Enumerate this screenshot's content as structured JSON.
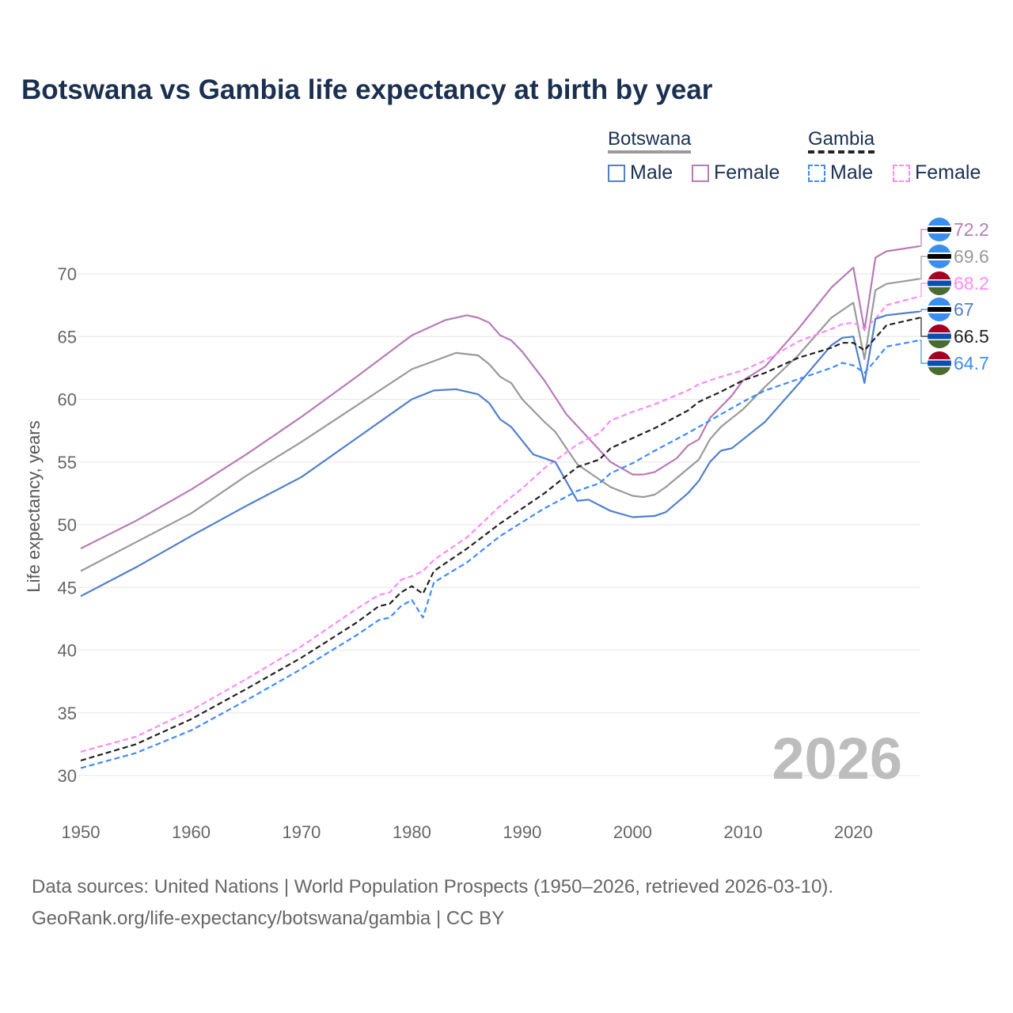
{
  "title": "Botswana vs Gambia life expectancy at birth by year",
  "legend": {
    "groups": [
      {
        "name": "Botswana",
        "items": [
          "Male",
          "Female"
        ]
      },
      {
        "name": "Gambia",
        "items": [
          "Male",
          "Female"
        ]
      }
    ]
  },
  "year_watermark": "2026",
  "footer": {
    "line1": "Data sources: United Nations | World Population Prospects (1950–2026, retrieved 2026-03-10).",
    "line2": "GeoRank.org/life-expectancy/botswana/gambia | CC BY"
  },
  "chart_data": {
    "type": "line",
    "title": "Botswana vs Gambia life expectancy at birth by year",
    "xlabel": "",
    "ylabel": "Life expectancy, years",
    "xlim": [
      1950,
      2026
    ],
    "ylim": [
      30,
      72.5
    ],
    "xticks": [
      "1950",
      "1960",
      "1970",
      "1980",
      "1990",
      "2000",
      "2010",
      "2020"
    ],
    "yticks": [
      "30",
      "35",
      "40",
      "45",
      "50",
      "55",
      "60",
      "65",
      "70"
    ],
    "grid": true,
    "legend_position": "top-right",
    "series": [
      {
        "name": "Botswana Female",
        "country": "Botswana",
        "color": "#b87ab8",
        "dashed": false,
        "end_label": "72.2",
        "x": [
          1950,
          1955,
          1960,
          1965,
          1970,
          1975,
          1980,
          1983,
          1985,
          1986,
          1987,
          1988,
          1989,
          1990,
          1992,
          1994,
          1996,
          1998,
          2000,
          2001,
          2002,
          2004,
          2005,
          2006,
          2007,
          2009,
          2010,
          2012,
          2015,
          2018,
          2020,
          2021,
          2022,
          2023,
          2026
        ],
        "y": [
          48.1,
          50.3,
          52.8,
          55.6,
          58.6,
          61.8,
          65.1,
          66.3,
          66.7,
          66.5,
          66.1,
          65.1,
          64.7,
          63.8,
          61.5,
          58.8,
          56.9,
          55.0,
          54.0,
          54.0,
          54.2,
          55.3,
          56.3,
          56.8,
          58.5,
          60.3,
          61.5,
          62.6,
          65.6,
          68.9,
          70.5,
          65.5,
          71.3,
          71.8,
          72.2
        ]
      },
      {
        "name": "Botswana",
        "country": "Botswana",
        "color": "#9a9a9a",
        "dashed": false,
        "end_label": "69.6",
        "x": [
          1950,
          1955,
          1960,
          1965,
          1970,
          1975,
          1980,
          1984,
          1986,
          1987,
          1988,
          1989,
          1990,
          1992,
          1993,
          1995,
          1998,
          2000,
          2001,
          2002,
          2003,
          2006,
          2007,
          2008,
          2010,
          2012,
          2015,
          2018,
          2020,
          2021,
          2022,
          2023,
          2026
        ],
        "y": [
          46.3,
          48.6,
          50.9,
          53.9,
          56.6,
          59.5,
          62.4,
          63.7,
          63.5,
          62.8,
          61.8,
          61.3,
          60.0,
          58.2,
          57.4,
          54.8,
          53.0,
          52.3,
          52.2,
          52.4,
          53.0,
          55.2,
          56.8,
          57.8,
          59.2,
          61.0,
          63.5,
          66.5,
          67.7,
          63.2,
          68.7,
          69.2,
          69.6
        ]
      },
      {
        "name": "Gambia Female",
        "country": "Gambia",
        "color": "#ff88ff",
        "dashed": true,
        "end_label": "68.2",
        "x": [
          1950,
          1955,
          1960,
          1965,
          1970,
          1975,
          1977,
          1978,
          1979,
          1980,
          1981,
          1982,
          1985,
          1988,
          1990,
          1992,
          1995,
          1997,
          1998,
          2000,
          2002,
          2005,
          2006,
          2008,
          2010,
          2012,
          2015,
          2018,
          2019,
          2020,
          2021,
          2022,
          2023,
          2026
        ],
        "y": [
          31.9,
          33.1,
          35.2,
          37.7,
          40.3,
          43.3,
          44.4,
          44.6,
          45.6,
          45.9,
          46.3,
          47.2,
          49.0,
          51.5,
          52.9,
          54.5,
          56.4,
          57.3,
          58.3,
          59.0,
          59.6,
          60.7,
          61.2,
          61.8,
          62.3,
          63.1,
          64.6,
          65.6,
          66.0,
          66.1,
          65.6,
          66.4,
          67.5,
          68.2
        ]
      },
      {
        "name": "Botswana Male",
        "country": "Botswana",
        "color": "#4f7fcf",
        "dashed": false,
        "end_label": "67",
        "x": [
          1950,
          1955,
          1960,
          1965,
          1970,
          1975,
          1980,
          1982,
          1984,
          1986,
          1987,
          1988,
          1989,
          1991,
          1993,
          1995,
          1996,
          1998,
          2000,
          2002,
          2003,
          2005,
          2006,
          2007,
          2008,
          2009,
          2012,
          2015,
          2018,
          2019,
          2020,
          2021,
          2022,
          2023,
          2026
        ],
        "y": [
          44.3,
          46.6,
          49.1,
          51.5,
          53.8,
          56.9,
          60.0,
          60.7,
          60.8,
          60.4,
          59.7,
          58.4,
          57.8,
          55.6,
          55.0,
          51.9,
          52.0,
          51.1,
          50.6,
          50.7,
          51.0,
          52.5,
          53.5,
          55.0,
          55.9,
          56.1,
          58.2,
          61.2,
          64.3,
          64.9,
          65.0,
          61.3,
          66.4,
          66.7,
          67.0
        ]
      },
      {
        "name": "Gambia",
        "country": "Gambia",
        "color": "#222222",
        "dashed": true,
        "end_label": "66.5",
        "x": [
          1950,
          1955,
          1960,
          1965,
          1970,
          1975,
          1977,
          1978,
          1979,
          1980,
          1981,
          1982,
          1985,
          1988,
          1990,
          1992,
          1995,
          1997,
          1998,
          2000,
          2002,
          2005,
          2006,
          2008,
          2010,
          2012,
          2015,
          2018,
          2019,
          2020,
          2021,
          2022,
          2023,
          2026
        ],
        "y": [
          31.2,
          32.5,
          34.5,
          36.9,
          39.4,
          42.2,
          43.5,
          43.7,
          44.6,
          45.1,
          44.5,
          46.3,
          48.1,
          50.1,
          51.3,
          52.5,
          54.6,
          55.2,
          56.1,
          56.9,
          57.7,
          59.1,
          59.8,
          60.6,
          61.5,
          62.1,
          63.3,
          64.1,
          64.5,
          64.5,
          63.9,
          64.9,
          65.9,
          66.5
        ]
      },
      {
        "name": "Gambia Male",
        "country": "Gambia",
        "color": "#3d8bff",
        "dashed": true,
        "end_label": "64.7",
        "x": [
          1950,
          1955,
          1960,
          1965,
          1970,
          1975,
          1977,
          1978,
          1979,
          1980,
          1981,
          1982,
          1985,
          1988,
          1990,
          1992,
          1995,
          1997,
          1998,
          2000,
          2002,
          2005,
          2008,
          2010,
          2012,
          2015,
          2018,
          2019,
          2020,
          2021,
          2022,
          2023,
          2026
        ],
        "y": [
          30.6,
          31.8,
          33.6,
          36.0,
          38.5,
          41.2,
          42.4,
          42.6,
          43.5,
          44.0,
          42.6,
          45.4,
          47.0,
          49.1,
          50.2,
          51.3,
          52.7,
          53.3,
          54.1,
          54.9,
          55.9,
          57.3,
          58.8,
          59.8,
          60.7,
          61.6,
          62.5,
          62.9,
          62.7,
          62.1,
          63.1,
          64.2,
          64.7
        ]
      }
    ]
  }
}
